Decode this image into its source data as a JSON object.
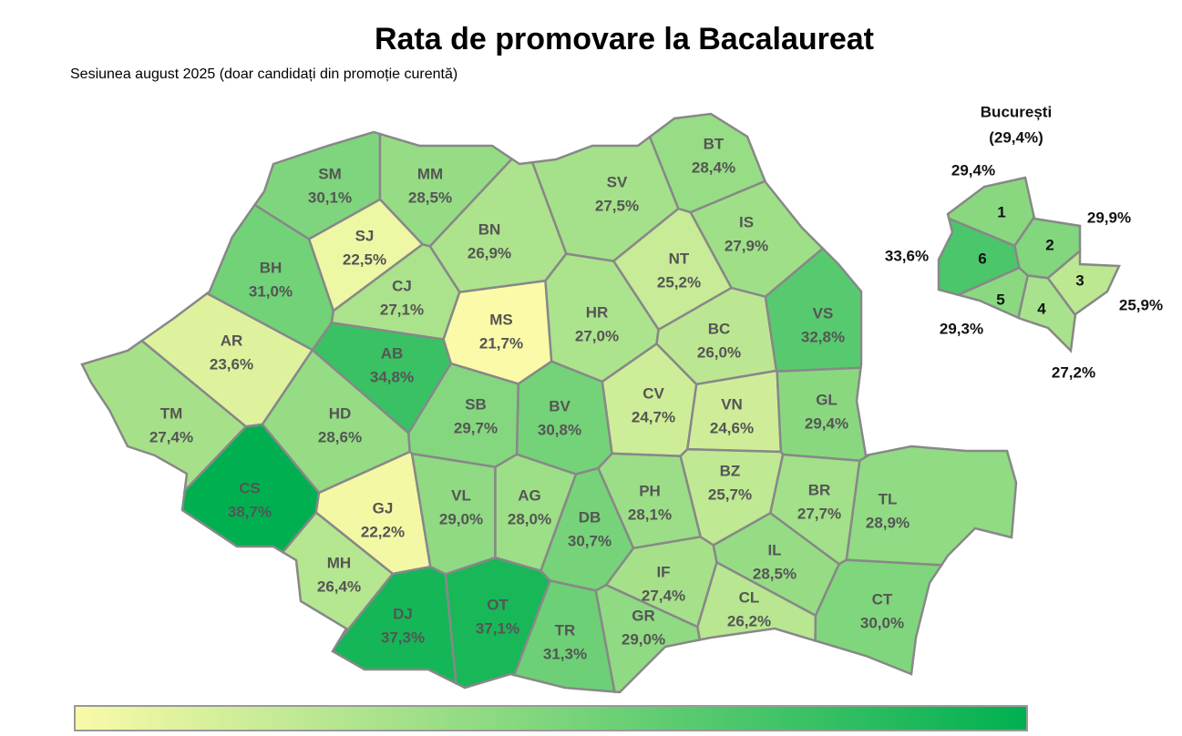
{
  "chart_data": {
    "type": "choropleth",
    "title": "Rata de promovare la Bacalaureat",
    "subtitle": "Sesiunea august 2025 (doar candidați din promoție curentă)",
    "categories": [
      "SM",
      "MM",
      "BT",
      "SV",
      "SJ",
      "BN",
      "IS",
      "BH",
      "CJ",
      "NT",
      "MS",
      "HR",
      "BC",
      "VS",
      "AR",
      "AB",
      "TM",
      "HD",
      "SB",
      "BV",
      "CV",
      "VN",
      "GL",
      "CS",
      "GJ",
      "VL",
      "AG",
      "DB",
      "PH",
      "BZ",
      "BR",
      "TL",
      "MH",
      "IF",
      "IL",
      "DJ",
      "OT",
      "TR",
      "GR",
      "CL",
      "CT"
    ],
    "values": [
      30.1,
      28.5,
      28.4,
      27.5,
      22.5,
      26.9,
      27.9,
      31.0,
      27.1,
      25.2,
      21.7,
      27.0,
      26.0,
      32.8,
      23.6,
      34.8,
      27.4,
      28.6,
      29.7,
      30.8,
      24.7,
      24.6,
      29.4,
      38.7,
      22.2,
      29.0,
      28.0,
      30.7,
      28.1,
      25.7,
      27.7,
      28.9,
      26.4,
      27.4,
      28.5,
      37.3,
      37.1,
      31.3,
      29.0,
      26.2,
      30.0
    ],
    "value_labels": [
      "30,1%",
      "28,5%",
      "28,4%",
      "27,5%",
      "22,5%",
      "26,9%",
      "27,9%",
      "31,0%",
      "27,1%",
      "25,2%",
      "21,7%",
      "27,0%",
      "26,0%",
      "32,8%",
      "23,6%",
      "34,8%",
      "27,4%",
      "28,6%",
      "29,7%",
      "30,8%",
      "24,7%",
      "24,6%",
      "29,4%",
      "38,7%",
      "22,2%",
      "29,0%",
      "28,0%",
      "30,7%",
      "28,1%",
      "25,7%",
      "27,7%",
      "28,9%",
      "26,4%",
      "27,4%",
      "28,5%",
      "37,3%",
      "37,1%",
      "31,3%",
      "29,0%",
      "26,2%",
      "30,0%"
    ],
    "color_scale": [
      "#fafaa8",
      "#00b050"
    ],
    "inset": {
      "title": "București",
      "value": 29.4,
      "value_label": "(29,4%)",
      "categories": [
        "1",
        "2",
        "3",
        "4",
        "5",
        "6"
      ],
      "values": [
        29.4,
        29.9,
        25.9,
        27.2,
        29.3,
        33.6
      ],
      "value_labels": [
        "29,4%",
        "29,9%",
        "25,9%",
        "27,2%",
        "29,3%",
        "33,6%"
      ]
    }
  }
}
